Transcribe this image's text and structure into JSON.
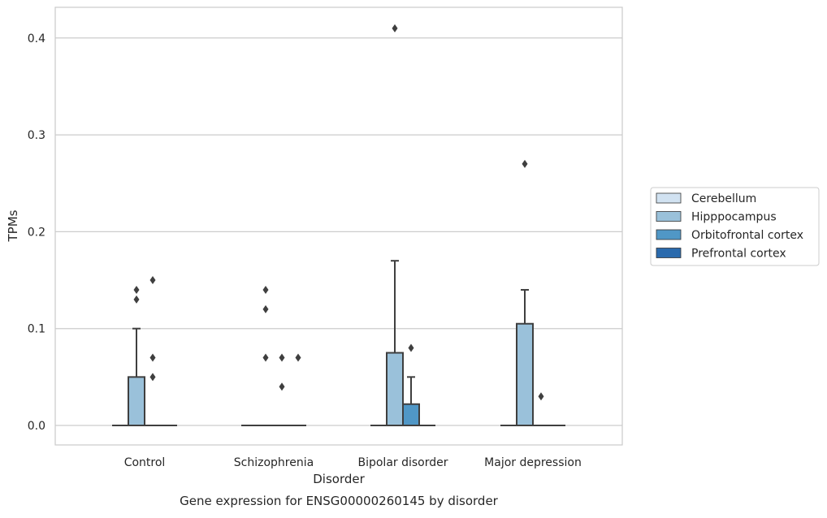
{
  "chart_data": {
    "type": "box",
    "title": "",
    "caption": "Gene expression for ENSG00000260145 by disorder",
    "xlabel": "Disorder",
    "ylabel": "TPMs",
    "ylim": [
      -0.02,
      0.43
    ],
    "yticks": [
      "0.0",
      "0.1",
      "0.2",
      "0.3",
      "0.4"
    ],
    "ytick_values": [
      0.0,
      0.1,
      0.2,
      0.3,
      0.4
    ],
    "grid": "horizontal",
    "legend_position": "right",
    "categories": [
      "Control",
      "Schizophrenia",
      "Bipolar disorder",
      "Major depression"
    ],
    "series": [
      {
        "name": "Cerebellum",
        "color": "#d1e2f1",
        "boxes": [
          {
            "q1": 0,
            "median": 0,
            "q3": 0,
            "whisker_low": 0,
            "whisker_high": 0,
            "outliers": []
          },
          {
            "q1": 0,
            "median": 0,
            "q3": 0,
            "whisker_low": 0,
            "whisker_high": 0,
            "outliers": []
          },
          {
            "q1": 0,
            "median": 0,
            "q3": 0,
            "whisker_low": 0,
            "whisker_high": 0,
            "outliers": []
          },
          {
            "q1": 0,
            "median": 0,
            "q3": 0,
            "whisker_low": 0,
            "whisker_high": 0,
            "outliers": []
          }
        ]
      },
      {
        "name": "Hipppocampus",
        "color": "#9ac1da",
        "boxes": [
          {
            "q1": 0,
            "median": 0,
            "q3": 0.05,
            "whisker_low": 0,
            "whisker_high": 0.1,
            "outliers": [
              0.13,
              0.14
            ]
          },
          {
            "q1": 0,
            "median": 0,
            "q3": 0,
            "whisker_low": 0,
            "whisker_high": 0,
            "outliers": [
              0.07,
              0.12,
              0.14
            ]
          },
          {
            "q1": 0,
            "median": 0,
            "q3": 0.075,
            "whisker_low": 0,
            "whisker_high": 0.17,
            "outliers": [
              0.41
            ]
          },
          {
            "q1": 0,
            "median": 0,
            "q3": 0.105,
            "whisker_low": 0,
            "whisker_high": 0.14,
            "outliers": [
              0.27
            ]
          }
        ]
      },
      {
        "name": "Orbitofrontal cortex",
        "color": "#5097c6",
        "boxes": [
          {
            "q1": 0,
            "median": 0,
            "q3": 0,
            "whisker_low": 0,
            "whisker_high": 0,
            "outliers": [
              0.05,
              0.07,
              0.15
            ]
          },
          {
            "q1": 0,
            "median": 0,
            "q3": 0,
            "whisker_low": 0,
            "whisker_high": 0,
            "outliers": [
              0.04,
              0.07
            ]
          },
          {
            "q1": 0,
            "median": 0,
            "q3": 0.022,
            "whisker_low": 0,
            "whisker_high": 0.05,
            "outliers": [
              0.08
            ]
          },
          {
            "q1": 0,
            "median": 0,
            "q3": 0,
            "whisker_low": 0,
            "whisker_high": 0,
            "outliers": [
              0.03
            ]
          }
        ]
      },
      {
        "name": "Prefrontal cortex",
        "color": "#2a6aad",
        "boxes": [
          {
            "q1": 0,
            "median": 0,
            "q3": 0,
            "whisker_low": 0,
            "whisker_high": 0,
            "outliers": []
          },
          {
            "q1": 0,
            "median": 0,
            "q3": 0,
            "whisker_low": 0,
            "whisker_high": 0,
            "outliers": [
              0.07
            ]
          },
          {
            "q1": 0,
            "median": 0,
            "q3": 0,
            "whisker_low": 0,
            "whisker_high": 0,
            "outliers": []
          },
          {
            "q1": 0,
            "median": 0,
            "q3": 0,
            "whisker_low": 0,
            "whisker_high": 0,
            "outliers": []
          }
        ]
      }
    ]
  }
}
